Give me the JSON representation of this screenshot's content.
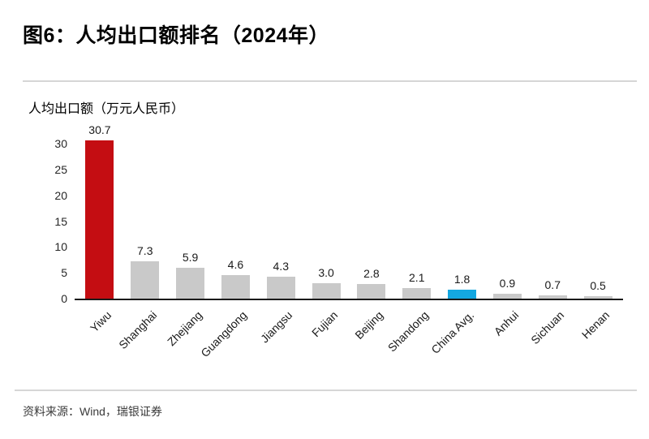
{
  "page": {
    "title": "图6：人均出口额排名（2024年）"
  },
  "chart_data": {
    "type": "bar",
    "title": "图6：人均出口额排名（2024年）",
    "axis_title": "人均出口额（万元人民币）",
    "categories": [
      "Yiwu",
      "Shanghai",
      "Zhejiang",
      "Guangdong",
      "Jiangsu",
      "Fujian",
      "Beijing",
      "Shandong",
      "China Avg.",
      "Anhui",
      "Sichuan",
      "Henan"
    ],
    "values": [
      30.7,
      7.3,
      5.9,
      4.6,
      4.3,
      3.0,
      2.8,
      2.1,
      1.8,
      0.9,
      0.7,
      0.5
    ],
    "value_labels": [
      "30.7",
      "7.3",
      "5.9",
      "4.6",
      "4.3",
      "3.0",
      "2.8",
      "2.1",
      "1.8",
      "0.9",
      "0.7",
      "0.5"
    ],
    "bar_colors": [
      "#C40D12",
      "#C9C9C9",
      "#C9C9C9",
      "#C9C9C9",
      "#C9C9C9",
      "#C9C9C9",
      "#C9C9C9",
      "#C9C9C9",
      "#14A7E0",
      "#C9C9C9",
      "#C9C9C9",
      "#C9C9C9"
    ],
    "y_ticks": [
      0,
      5,
      10,
      15,
      20,
      25,
      30
    ],
    "ylim": [
      0,
      30
    ],
    "grid": false,
    "legend": "none"
  },
  "footer": {
    "source": "资料来源：Wind，瑞银证券"
  },
  "theme": {
    "highlight_red": "#C40D12",
    "highlight_blue": "#14A7E0",
    "bar_gray": "#C9C9C9",
    "divider_gray": "#D6D6D6",
    "axis_black": "#1A1A1A"
  }
}
